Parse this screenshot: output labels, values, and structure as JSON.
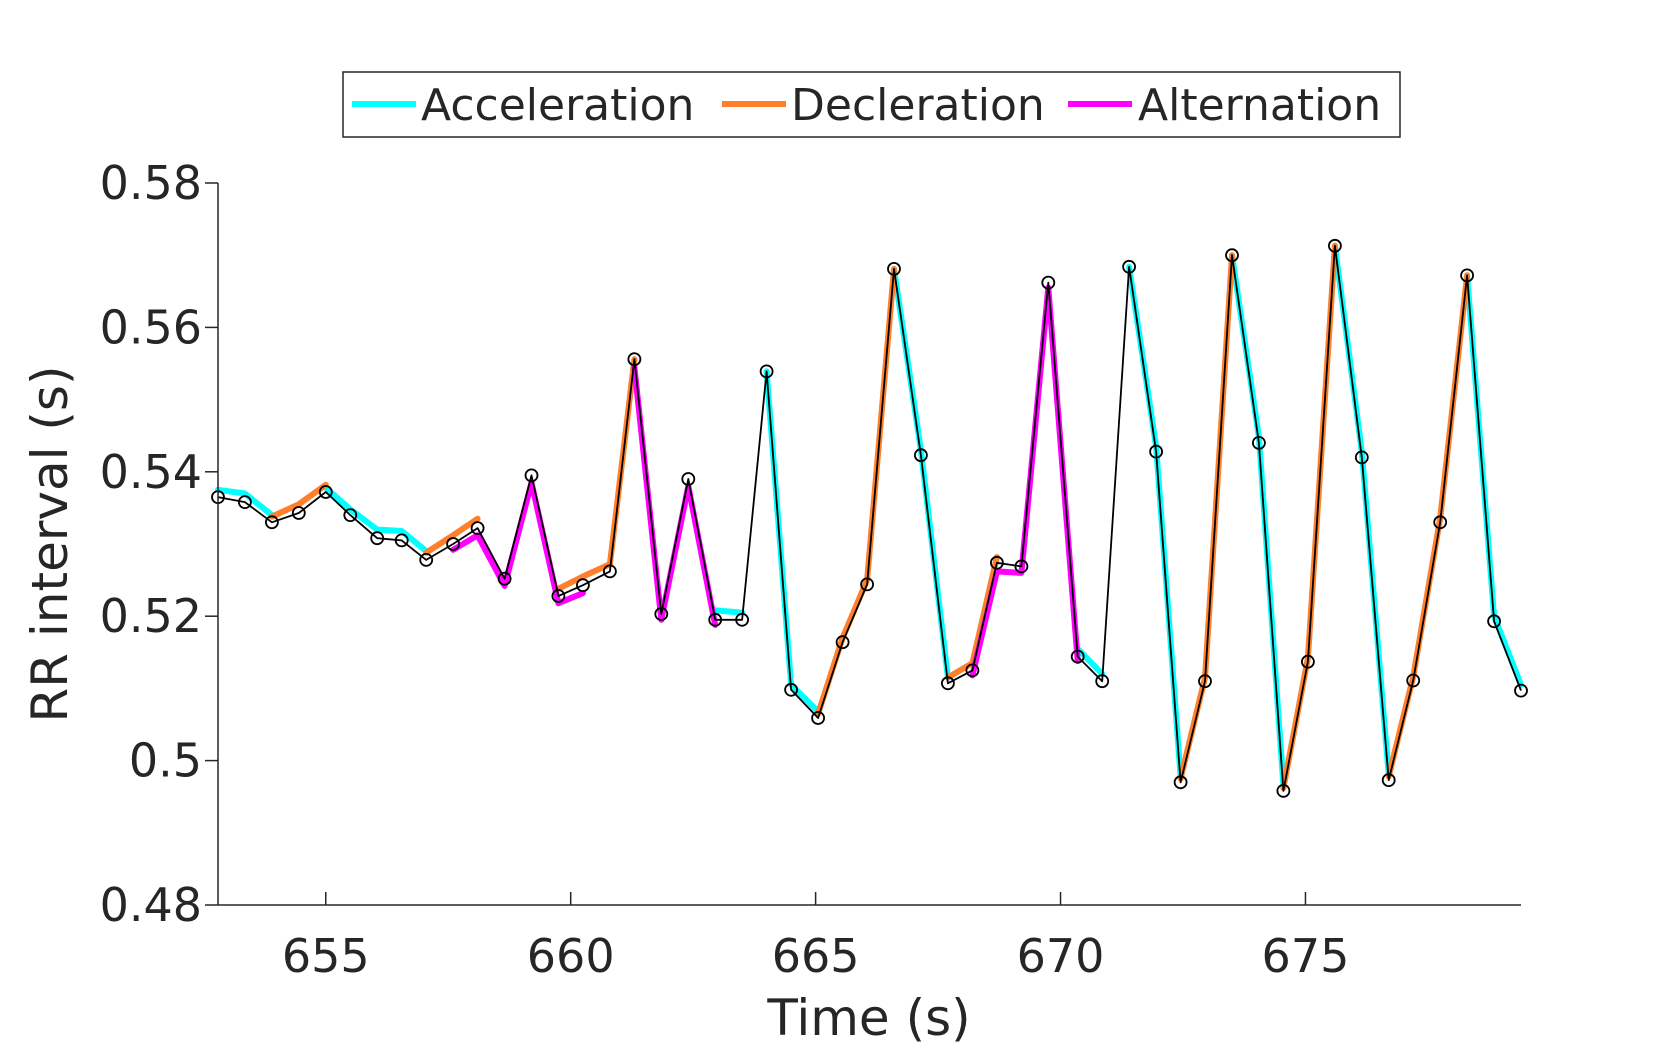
{
  "chart_data": {
    "type": "line",
    "title": "",
    "xlabel": "Time (s)",
    "ylabel": "RR interval (s)",
    "xlim": [
      652.8,
      679.4
    ],
    "ylim": [
      0.48,
      0.58
    ],
    "xticks": [
      655,
      660,
      665,
      670,
      675
    ],
    "xtick_labels": [
      "655",
      "660",
      "665",
      "670",
      "675"
    ],
    "yticks": [
      0.48,
      0.5,
      0.52,
      0.54,
      0.56,
      0.58
    ],
    "ytick_labels": [
      "0.48",
      "0.5",
      "0.52",
      "0.54",
      "0.56",
      "0.58"
    ],
    "grid": false,
    "legend": {
      "placement": "top-center",
      "orientation": "horizontal"
    },
    "colors": {
      "Acceleration": "#00ffff",
      "Decleration": "#ff7f2a",
      "Alternation": "#ff00ff",
      "rr_line": "#000000"
    },
    "rr_series": {
      "x": [
        652.8,
        653.35,
        653.9,
        654.45,
        655.0,
        655.5,
        656.05,
        656.55,
        657.05,
        657.6,
        658.1,
        658.65,
        659.2,
        659.75,
        660.25,
        660.8,
        661.3,
        661.85,
        662.4,
        662.95,
        663.5,
        664.0,
        664.5,
        665.05,
        665.55,
        666.05,
        666.6,
        667.15,
        667.7,
        668.2,
        668.7,
        669.2,
        669.75,
        670.35,
        670.85,
        671.4,
        671.95,
        672.45,
        672.95,
        673.5,
        674.05,
        674.55,
        675.05,
        675.6,
        676.15,
        676.7,
        677.2,
        677.75,
        678.3,
        678.85,
        679.4
      ],
      "y": [
        0.5365,
        0.5358,
        0.533,
        0.5343,
        0.5372,
        0.534,
        0.5308,
        0.5305,
        0.5278,
        0.53,
        0.5322,
        0.5252,
        0.5395,
        0.5228,
        0.5243,
        0.5262,
        0.5556,
        0.5203,
        0.539,
        0.5195,
        0.5195,
        0.5539,
        0.5098,
        0.5059,
        0.5164,
        0.5244,
        0.5681,
        0.5423,
        0.5107,
        0.5125,
        0.5274,
        0.5269,
        0.5662,
        0.5144,
        0.511,
        0.5684,
        0.5428,
        0.497,
        0.511,
        0.57,
        0.544,
        0.4958,
        0.5137,
        0.5713,
        0.542,
        0.4973,
        0.5111,
        0.533,
        0.5672,
        0.5193,
        0.5097
      ]
    },
    "series": [
      {
        "name": "Acceleration",
        "x": [
          652.8,
          653.35,
          653.9
        ],
        "y": [
          0.5375,
          0.537,
          0.534
        ]
      },
      {
        "name": "Acceleration",
        "x": [
          655.0,
          655.5,
          656.05,
          656.55,
          657.05
        ],
        "y": [
          0.5378,
          0.5348,
          0.532,
          0.5318,
          0.529
        ]
      },
      {
        "name": "Acceleration",
        "x": [
          662.95,
          663.5
        ],
        "y": [
          0.5208,
          0.5205
        ]
      },
      {
        "name": "Acceleration",
        "x": [
          664.0,
          664.5,
          665.05
        ],
        "y": [
          0.5539,
          0.5105,
          0.5068
        ]
      },
      {
        "name": "Acceleration",
        "x": [
          666.6,
          667.15,
          667.7
        ],
        "y": [
          0.5681,
          0.543,
          0.5115
        ]
      },
      {
        "name": "Acceleration",
        "x": [
          670.35,
          670.85
        ],
        "y": [
          0.5155,
          0.512
        ]
      },
      {
        "name": "Acceleration",
        "x": [
          671.4,
          671.95,
          672.45
        ],
        "y": [
          0.5684,
          0.5435,
          0.4978
        ]
      },
      {
        "name": "Acceleration",
        "x": [
          673.5,
          674.05,
          674.55
        ],
        "y": [
          0.57,
          0.5448,
          0.4965
        ]
      },
      {
        "name": "Acceleration",
        "x": [
          675.6,
          676.15,
          676.7
        ],
        "y": [
          0.5713,
          0.5428,
          0.498
        ]
      },
      {
        "name": "Acceleration",
        "x": [
          678.3,
          678.85,
          679.4
        ],
        "y": [
          0.5672,
          0.52,
          0.5105
        ]
      },
      {
        "name": "Decleration",
        "x": [
          653.9,
          654.45,
          655.0
        ],
        "y": [
          0.5338,
          0.5355,
          0.5382
        ]
      },
      {
        "name": "Decleration",
        "x": [
          657.05,
          657.6,
          658.1
        ],
        "y": [
          0.5288,
          0.5312,
          0.5335
        ]
      },
      {
        "name": "Decleration",
        "x": [
          659.75,
          660.25,
          660.8,
          661.3
        ],
        "y": [
          0.5238,
          0.5255,
          0.5272,
          0.5556
        ]
      },
      {
        "name": "Decleration",
        "x": [
          665.05,
          665.55,
          666.05,
          666.6
        ],
        "y": [
          0.5065,
          0.517,
          0.525,
          0.5681
        ]
      },
      {
        "name": "Decleration",
        "x": [
          667.7,
          668.2,
          668.7
        ],
        "y": [
          0.5115,
          0.5135,
          0.5282
        ]
      },
      {
        "name": "Decleration",
        "x": [
          672.45,
          672.95,
          673.5
        ],
        "y": [
          0.4975,
          0.5115,
          0.57
        ]
      },
      {
        "name": "Decleration",
        "x": [
          674.55,
          675.05,
          675.6
        ],
        "y": [
          0.4962,
          0.5142,
          0.5713
        ]
      },
      {
        "name": "Decleration",
        "x": [
          676.7,
          677.2,
          677.75,
          678.3
        ],
        "y": [
          0.4978,
          0.5116,
          0.5336,
          0.5672
        ]
      },
      {
        "name": "Alternation",
        "x": [
          657.6,
          658.1,
          658.65,
          659.2,
          659.75,
          660.25
        ],
        "y": [
          0.5292,
          0.5312,
          0.5242,
          0.5385,
          0.5218,
          0.5232
        ]
      },
      {
        "name": "Alternation",
        "x": [
          661.3,
          661.85,
          662.4,
          662.95
        ],
        "y": [
          0.5545,
          0.5195,
          0.538,
          0.5188
        ]
      },
      {
        "name": "Alternation",
        "x": [
          668.2,
          668.7,
          669.2,
          669.75,
          670.35
        ],
        "y": [
          0.5118,
          0.5262,
          0.526,
          0.5655,
          0.5138
        ]
      }
    ]
  }
}
